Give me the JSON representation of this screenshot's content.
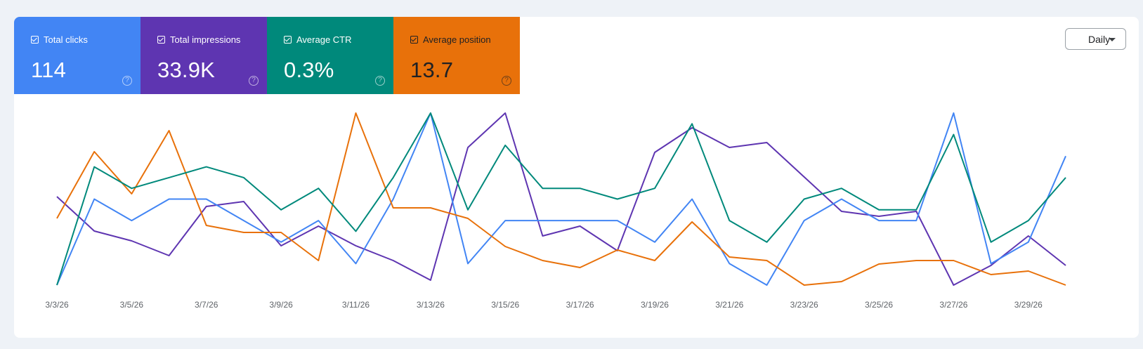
{
  "metrics": [
    {
      "label": "Total clicks",
      "value": "114",
      "color": "#4285f4",
      "text_color": "#ffffff"
    },
    {
      "label": "Total impressions",
      "value": "33.9K",
      "color": "#5e35b1",
      "text_color": "#ffffff"
    },
    {
      "label": "Average CTR",
      "value": "0.3%",
      "color": "#00897b",
      "text_color": "#ffffff"
    },
    {
      "label": "Average position",
      "value": "13.7",
      "color": "#e8710a",
      "text_color": "#202124"
    }
  ],
  "granularity": {
    "label": "Daily"
  },
  "chart_data": {
    "type": "line",
    "x": [
      "3/3/26",
      "3/4/26",
      "3/5/26",
      "3/6/26",
      "3/7/26",
      "3/8/26",
      "3/9/26",
      "3/10/26",
      "3/11/26",
      "3/12/26",
      "3/13/26",
      "3/14/26",
      "3/15/26",
      "3/16/26",
      "3/17/26",
      "3/18/26",
      "3/19/26",
      "3/20/26",
      "3/21/26",
      "3/22/26",
      "3/23/26",
      "3/24/26",
      "3/25/26",
      "3/26/26",
      "3/27/26",
      "3/28/26",
      "3/29/26",
      "3/30/26"
    ],
    "x_tick_labels": [
      "3/3/26",
      "3/5/26",
      "3/7/26",
      "3/9/26",
      "3/11/26",
      "3/13/26",
      "3/15/26",
      "3/17/26",
      "3/19/26",
      "3/21/26",
      "3/23/26",
      "3/25/26",
      "3/27/26",
      "3/29/26"
    ],
    "grid": false,
    "legend": "none",
    "series": [
      {
        "color": "#5e35b1",
        "values": [
          83,
          76,
          74,
          71,
          81,
          82,
          73,
          77,
          73,
          70,
          66,
          93,
          100,
          75,
          77,
          72,
          92,
          97,
          93,
          94,
          87,
          80,
          79,
          80,
          65,
          69,
          75,
          69
        ]
      },
      {
        "color": "#4285f4",
        "values": [
          1,
          5,
          4,
          5,
          5,
          4,
          3,
          4,
          2,
          5,
          9,
          2,
          4,
          4,
          4,
          4,
          3,
          5,
          2,
          1,
          4,
          5,
          4,
          4,
          9,
          2,
          3,
          7
        ]
      },
      {
        "color": "#e8710a",
        "values": [
          67,
          86,
          74,
          92,
          65,
          63,
          63,
          55,
          97,
          70,
          70,
          67,
          59,
          55,
          53,
          58,
          55,
          66,
          56,
          55,
          48,
          49,
          54,
          55,
          55,
          51,
          52,
          48
        ]
      },
      {
        "color": "#00897b",
        "values": [
          0,
          11,
          9,
          10,
          11,
          10,
          7,
          9,
          5,
          10,
          16,
          7,
          13,
          9,
          9,
          8,
          9,
          15,
          6,
          4,
          8,
          9,
          7,
          7,
          14,
          4,
          6,
          10
        ]
      }
    ]
  }
}
